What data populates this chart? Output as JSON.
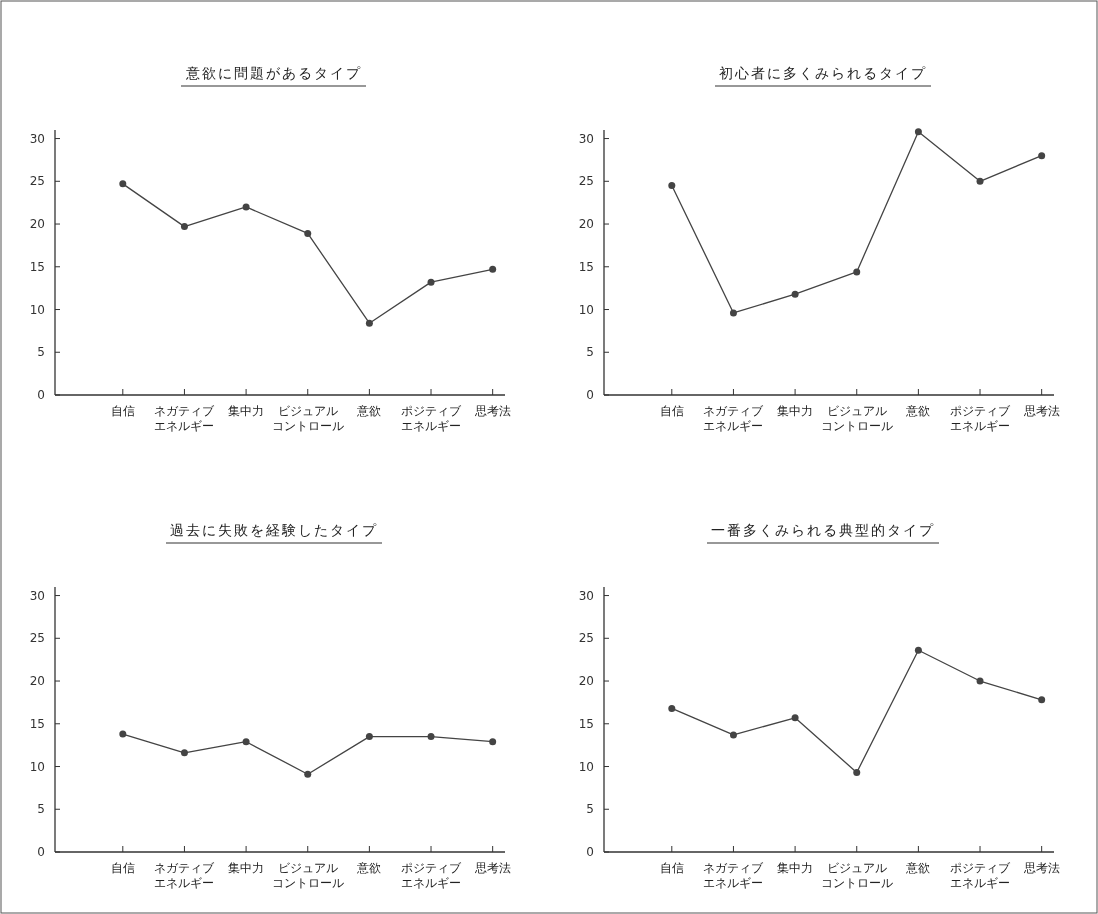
{
  "chart_data": [
    {
      "type": "line",
      "title": "意欲に問題があるタイプ",
      "categories": [
        "自信",
        "ネガティブエネルギー",
        "集中力",
        "ビジュアルコントロール",
        "意欲",
        "ポジティブエネルギー",
        "思考法"
      ],
      "series": [
        {
          "color": "#444444",
          "values": [
            24.7,
            19.7,
            22,
            18.9,
            8.4,
            13.2,
            14.7
          ]
        }
      ],
      "ylim": [
        0,
        31
      ],
      "yticks": [
        0,
        5,
        10,
        15,
        20,
        25,
        30
      ],
      "grid": false,
      "marker": "circle",
      "line_style": "solid"
    },
    {
      "type": "line",
      "title": "初心者に多くみられるタイプ",
      "categories": [
        "自信",
        "ネガティブエネルギー",
        "集中力",
        "ビジュアルコントロール",
        "意欲",
        "ポジティブエネルギー",
        "思考法"
      ],
      "series": [
        {
          "color": "#444444",
          "values": [
            24.5,
            9.6,
            11.8,
            14.4,
            30.8,
            25,
            28
          ]
        }
      ],
      "ylim": [
        0,
        31
      ],
      "yticks": [
        0,
        5,
        10,
        15,
        20,
        25,
        30
      ],
      "grid": false,
      "marker": "circle",
      "line_style": "solid"
    },
    {
      "type": "line",
      "title": "過去に失敗を経験したタイプ",
      "categories": [
        "自信",
        "ネガティブエネルギー",
        "集中力",
        "ビジュアルコントロール",
        "意欲",
        "ポジティブエネルギー",
        "思考法"
      ],
      "series": [
        {
          "color": "#444444",
          "values": [
            13.8,
            11.6,
            12.9,
            9.1,
            13.5,
            13.5,
            12.9
          ]
        }
      ],
      "ylim": [
        0,
        31
      ],
      "yticks": [
        0,
        5,
        10,
        15,
        20,
        25,
        30
      ],
      "grid": false,
      "marker": "circle",
      "line_style": "solid"
    },
    {
      "type": "line",
      "title": "一番多くみられる典型的タイプ",
      "categories": [
        "自信",
        "ネガティブエネルギー",
        "集中力",
        "ビジュアルコントロール",
        "意欲",
        "ポジティブエネルギー",
        "思考法"
      ],
      "series": [
        {
          "color": "#444444",
          "values": [
            16.8,
            13.7,
            15.7,
            9.3,
            23.6,
            20,
            17.8
          ]
        }
      ],
      "ylim": [
        0,
        31
      ],
      "yticks": [
        0,
        5,
        10,
        15,
        20,
        25,
        30
      ],
      "grid": false,
      "marker": "circle",
      "line_style": "solid"
    }
  ]
}
